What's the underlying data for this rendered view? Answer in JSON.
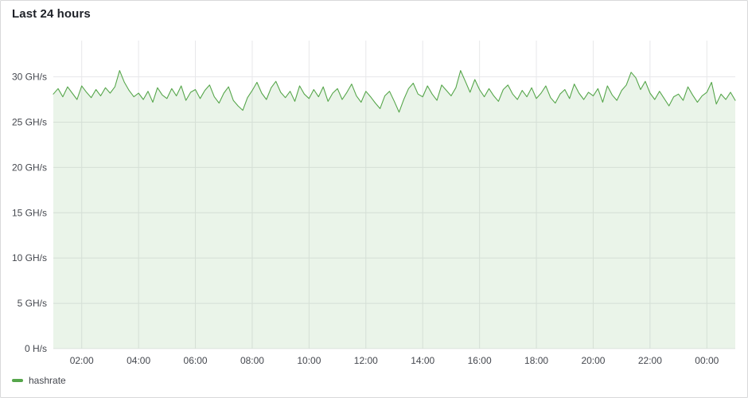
{
  "panel": {
    "title": "Last 24 hours"
  },
  "legend": {
    "items": [
      {
        "label": "hashrate",
        "color": "#56A64B"
      }
    ]
  },
  "colors": {
    "line": "#56A64B",
    "fill_alpha": 0.12,
    "grid": "#e7e8ea",
    "tick_text": "#44474e",
    "title_text": "#1f2229",
    "panel_border": "#d8d9da",
    "panel_bg": "#ffffff"
  },
  "chart_data": {
    "type": "area",
    "title": "Last 24 hours",
    "xlabel": "",
    "ylabel": "",
    "grid": true,
    "legend_position": "bottom-left",
    "x_start": "01:00",
    "x_step_minutes": 10,
    "x_span_minutes": 1440,
    "x_ticks": [
      "02:00",
      "04:00",
      "06:00",
      "08:00",
      "10:00",
      "12:00",
      "14:00",
      "16:00",
      "18:00",
      "20:00",
      "22:00",
      "00:00"
    ],
    "y_ticks": [
      "0 H/s",
      "5 GH/s",
      "10 GH/s",
      "15 GH/s",
      "20 GH/s",
      "25 GH/s",
      "30 GH/s"
    ],
    "y_tick_values": [
      0,
      5,
      10,
      15,
      20,
      25,
      30
    ],
    "ylim": [
      0,
      34
    ],
    "unit": "GH/s",
    "series": [
      {
        "name": "hashrate",
        "color": "#56A64B",
        "values": [
          28.1,
          28.7,
          27.8,
          28.9,
          28.2,
          27.5,
          29.0,
          28.3,
          27.7,
          28.6,
          27.9,
          28.8,
          28.2,
          28.9,
          30.7,
          29.4,
          28.5,
          27.8,
          28.2,
          27.5,
          28.4,
          27.2,
          28.8,
          28.0,
          27.6,
          28.7,
          27.9,
          29.0,
          27.4,
          28.3,
          28.6,
          27.6,
          28.5,
          29.1,
          27.8,
          27.1,
          28.2,
          28.9,
          27.4,
          26.8,
          26.3,
          27.7,
          28.5,
          29.4,
          28.2,
          27.5,
          28.8,
          29.5,
          28.3,
          27.7,
          28.4,
          27.3,
          29.0,
          28.1,
          27.6,
          28.6,
          27.8,
          28.9,
          27.3,
          28.2,
          28.7,
          27.5,
          28.3,
          29.2,
          27.9,
          27.2,
          28.4,
          27.8,
          27.1,
          26.5,
          27.9,
          28.4,
          27.3,
          26.1,
          27.5,
          28.7,
          29.3,
          28.1,
          27.8,
          29.0,
          28.1,
          27.4,
          29.1,
          28.5,
          27.9,
          28.8,
          30.7,
          29.5,
          28.3,
          29.7,
          28.6,
          27.8,
          28.7,
          27.9,
          27.3,
          28.6,
          29.1,
          28.1,
          27.5,
          28.5,
          27.8,
          28.8,
          27.6,
          28.2,
          29.0,
          27.7,
          27.1,
          28.1,
          28.6,
          27.6,
          29.2,
          28.2,
          27.5,
          28.3,
          27.9,
          28.7,
          27.2,
          29.0,
          28.0,
          27.4,
          28.5,
          29.1,
          30.5,
          29.9,
          28.6,
          29.5,
          28.2,
          27.5,
          28.4,
          27.6,
          26.8,
          27.8,
          28.1,
          27.4,
          28.9,
          28.0,
          27.2,
          27.9,
          28.3,
          29.4,
          27.0,
          28.1,
          27.5,
          28.3,
          27.4
        ]
      }
    ]
  }
}
